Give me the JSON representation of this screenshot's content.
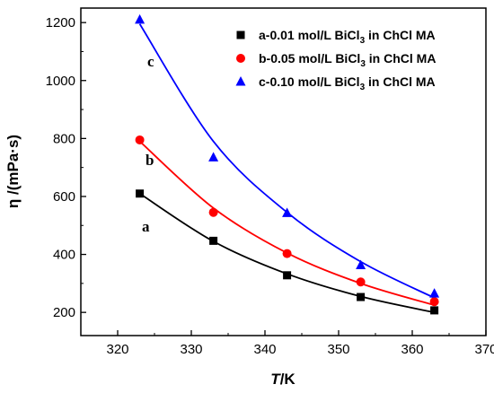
{
  "chart_data": {
    "type": "scatter",
    "xlabel": {
      "italic": "T",
      "rest": "/K"
    },
    "ylabel": "η /(mPa·s)",
    "xlim": [
      315,
      370
    ],
    "ylim": [
      120,
      1250
    ],
    "xticks": [
      320,
      330,
      340,
      350,
      360,
      370
    ],
    "yticks": [
      200,
      400,
      600,
      800,
      1000,
      1200
    ],
    "grid": false,
    "legend_position": "top-right",
    "series": [
      {
        "name": "a-0.01 mol/L BiCl3 in ChCl MA",
        "legend": {
          "pre": "a-0.01 mol/L BiCl",
          "sub": "3",
          "post": " in ChCl MA"
        },
        "curve_label": "a",
        "marker": "square",
        "color": "#000000",
        "x": [
          323,
          333,
          343,
          353,
          363
        ],
        "y": [
          610,
          447,
          328,
          253,
          207
        ],
        "fit": [
          610,
          445,
          333,
          255,
          200
        ]
      },
      {
        "name": "b-0.05 mol/L BiCl3 in ChCl MA",
        "legend": {
          "pre": "b-0.05 mol/L BiCl",
          "sub": "3",
          "post": " in ChCl MA"
        },
        "curve_label": "b",
        "marker": "circle",
        "color": "#ff0000",
        "x": [
          323,
          333,
          343,
          353,
          363
        ],
        "y": [
          795,
          545,
          403,
          305,
          237
        ],
        "fit": [
          790,
          560,
          405,
          300,
          225
        ]
      },
      {
        "name": "c-0.10 mol/L BiCl3 in ChCl MA",
        "legend": {
          "pre": "c-0.10 mol/L BiCl",
          "sub": "3",
          "post": " in ChCl MA"
        },
        "curve_label": "c",
        "marker": "triangle",
        "color": "#0000ff",
        "x": [
          323,
          333,
          343,
          353,
          363
        ],
        "y": [
          1210,
          735,
          543,
          363,
          265
        ],
        "fit": [
          1195,
          790,
          545,
          375,
          250
        ]
      }
    ]
  }
}
